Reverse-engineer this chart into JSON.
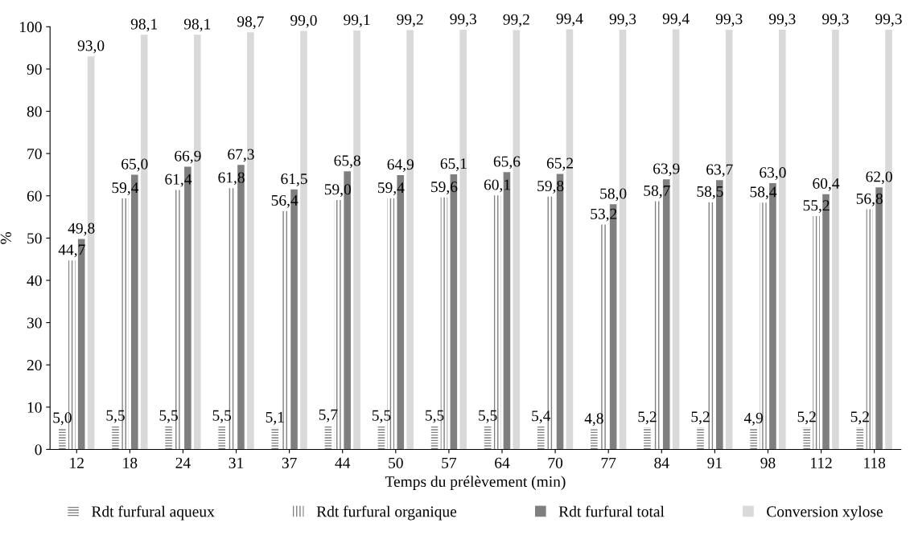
{
  "chart_data": {
    "type": "bar",
    "xlabel": "Temps du prélèvement (min)",
    "ylabel": "%",
    "categories": [
      "12",
      "18",
      "24",
      "31",
      "37",
      "44",
      "50",
      "57",
      "64",
      "70",
      "77",
      "84",
      "91",
      "98",
      "112",
      "118"
    ],
    "ylim": [
      0,
      100
    ],
    "yticks": [
      0,
      10,
      20,
      30,
      40,
      50,
      60,
      70,
      80,
      90,
      100
    ],
    "grid": false,
    "legend": "bottom",
    "series": [
      {
        "name": "Rdt furfural aqueux",
        "color": "#7f7f7f",
        "values": [
          5.0,
          5.5,
          5.5,
          5.5,
          5.1,
          5.7,
          5.5,
          5.5,
          5.5,
          5.4,
          4.8,
          5.2,
          5.2,
          4.9,
          5.2,
          5.2
        ],
        "value_labels": [
          "5,0",
          "5,5",
          "5,5",
          "5,5",
          "5,1",
          "5,7",
          "5,5",
          "5,5",
          "5,5",
          "5,4",
          "4,8",
          "5,2",
          "5,2",
          "4,9",
          "5,2",
          "5,2"
        ]
      },
      {
        "name": "Rdt furfural organique",
        "color": "#7f7f7f",
        "values": [
          44.7,
          59.4,
          61.4,
          61.8,
          56.4,
          59.0,
          59.4,
          59.6,
          60.1,
          59.8,
          53.2,
          58.7,
          58.5,
          58.4,
          55.2,
          56.8
        ],
        "value_labels": [
          "44,7",
          "59,4",
          "61,4",
          "61,8",
          "56,4",
          "59,0",
          "59,4",
          "59,6",
          "60,1",
          "59,8",
          "53,2",
          "58,7",
          "58,5",
          "58,4",
          "55,2",
          "56,8"
        ]
      },
      {
        "name": "Rdt furfural total",
        "color": "#7f7f7f",
        "values": [
          49.8,
          65.0,
          66.9,
          67.3,
          61.5,
          65.8,
          64.9,
          65.1,
          65.6,
          65.2,
          58.0,
          63.9,
          63.7,
          63.0,
          60.4,
          62.0
        ],
        "value_labels": [
          "49,8",
          "65,0",
          "66,9",
          "67,3",
          "61,5",
          "65,8",
          "64,9",
          "65,1",
          "65,6",
          "65,2",
          "58,0",
          "63,9",
          "63,7",
          "63,0",
          "60,4",
          "62,0"
        ]
      },
      {
        "name": "Conversion xylose",
        "color": "#d9d9d9",
        "values": [
          93.0,
          98.1,
          98.1,
          98.7,
          99.0,
          99.1,
          99.2,
          99.3,
          99.2,
          99.4,
          99.3,
          99.4,
          99.3,
          99.3,
          99.3,
          99.3
        ],
        "value_labels": [
          "93,0",
          "98,1",
          "98,1",
          "98,7",
          "99,0",
          "99,1",
          "99,2",
          "99,3",
          "99,2",
          "99,4",
          "99,3",
          "99,4",
          "99,3",
          "99,3",
          "99,3",
          "99,3"
        ]
      }
    ]
  }
}
